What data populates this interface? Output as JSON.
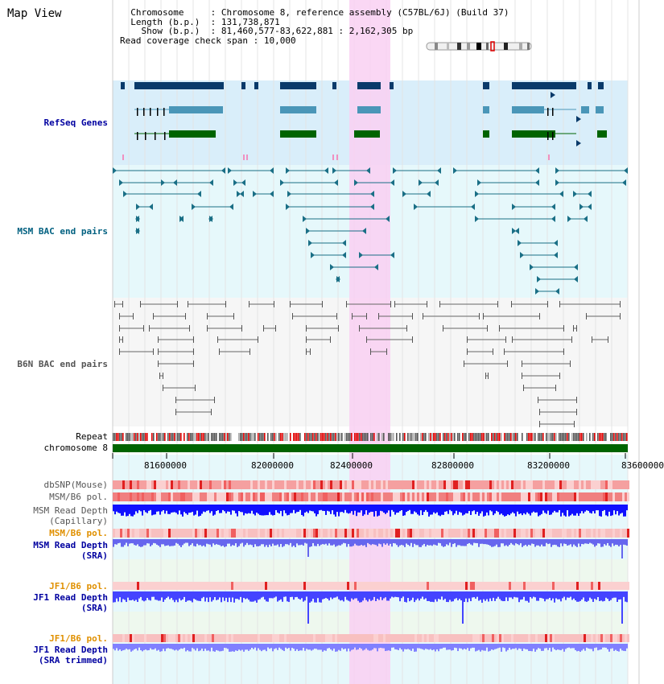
{
  "page": {
    "title": "Map View"
  },
  "info": {
    "chromosome_key": "Chromosome",
    "chromosome_value": "Chromosome 8, reference assembly (C57BL/6J) (Build 37)",
    "length_key": "Length (b.p.)",
    "length_value": "131,738,871",
    "show_key": "Show (b.p.)",
    "show_value": "81,460,577-83,622,881 : 2,162,305 bp",
    "span_key": "Read coverage check span",
    "span_value": "10,000"
  },
  "tracks": {
    "refseq": "RefSeq Genes",
    "msm_bac": "MSM BAC end pairs",
    "b6n_bac": "B6N BAC end pairs",
    "repeat": "Repeat",
    "chromosome": "chromosome 8",
    "dbsnp": "dbSNP(Mouse)",
    "msm_b6_pol_1": "MSM/B6 pol.",
    "msm_depth_cap_1": "MSM Read Depth",
    "msm_depth_cap_2": "(Capillary)",
    "msm_b6_pol_2": "MSM/B6 pol.",
    "msm_depth_sra_1": "MSM Read Depth",
    "msm_depth_sra_2": "(SRA)",
    "jf1_b6_pol_1": "JF1/B6 pol.",
    "jf1_depth_sra_1": "JF1 Read Depth",
    "jf1_depth_sra_2": "(SRA)",
    "jf1_b6_pol_2": "JF1/B6 pol.",
    "jf1_depth_trim_1": "JF1 Read Depth",
    "jf1_depth_trim_2": "(SRA trimmed)"
  },
  "axis": {
    "ticks": [
      "81600000",
      "82000000",
      "82400000",
      "82800000",
      "83200000",
      "83600000"
    ]
  },
  "colors": {
    "refseq_bg": "#d9eefa",
    "bac_bg": "#e6f8fb",
    "b6n_bg": "#f6f6f6",
    "highlight": "#f9d0f2",
    "label_blue": "#0000a0",
    "label_teal": "#006080",
    "label_gray": "#555555",
    "label_orange": "#e09000",
    "chrom_green": "#006400",
    "gene_dark": "#0a3a6a",
    "gene_light": "#4a96b8",
    "gene_green": "#006400",
    "depth_blue": "#1010ff",
    "depth_light": "#7070ff"
  }
}
